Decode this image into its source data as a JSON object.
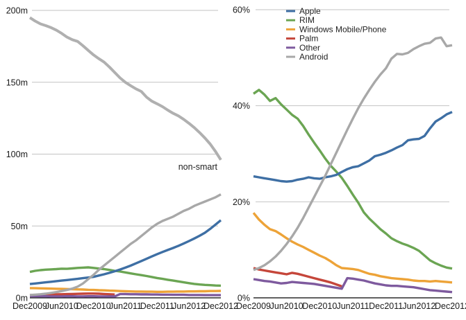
{
  "figure": {
    "background": "#ffffff",
    "text_color": "#1a1a1a",
    "gridline_color": "#c2c2c2",
    "axis_color": "#000000"
  },
  "chart_data": [
    {
      "type": "line",
      "id": "installed-base-chart",
      "title": "",
      "unit": "millions of units",
      "ylim": [
        0,
        200
      ],
      "grid": true,
      "months_span": 36,
      "y_ticks": [
        {
          "value": 0,
          "label": "0m"
        },
        {
          "value": 50,
          "label": "50m"
        },
        {
          "value": 100,
          "label": "100m"
        },
        {
          "value": 150,
          "label": "150m"
        },
        {
          "value": 200,
          "label": "200m"
        }
      ],
      "x_ticks": [
        {
          "month": 0,
          "label": "Dec2009"
        },
        {
          "month": 6,
          "label": "Jun2010"
        },
        {
          "month": 12,
          "label": "Dec2010"
        },
        {
          "month": 18,
          "label": "Jun2011"
        },
        {
          "month": 24,
          "label": "Dec2011"
        },
        {
          "month": 30,
          "label": "Jun2012"
        },
        {
          "month": 36,
          "label": "Dec2012"
        }
      ],
      "annotation": {
        "text": "non-smart"
      },
      "legend": null,
      "series": [
        {
          "name": "non-smart",
          "color": "#b0b0b0",
          "width": 4,
          "start_month": 0,
          "values": [
            195,
            192.6,
            190.6,
            189.4,
            188,
            186.2,
            184,
            181.4,
            179.6,
            178.4,
            175.4,
            172.2,
            169,
            166.4,
            164,
            160.6,
            156.8,
            153,
            150,
            147.6,
            145.4,
            143.6,
            139.6,
            136.8,
            135,
            133,
            130.6,
            128.4,
            126.6,
            124.2,
            121.4,
            118.4,
            115,
            111.2,
            107,
            101.8,
            96
          ]
        },
        {
          "name": "Windows Mobile/Phone",
          "color": "#eda338",
          "width": 3.4,
          "start_month": 0,
          "values": [
            6.8,
            6.7,
            6.6,
            6.5,
            6.4,
            6.3,
            6.2,
            6.1,
            6,
            5.9,
            5.8,
            5.6,
            5.5,
            5.3,
            5.2,
            5,
            4.9,
            4.7,
            4.6,
            4.5,
            4.4,
            4.4,
            4.3,
            4.3,
            4.2,
            4.2,
            4.3,
            4.3,
            4.4,
            4.4,
            4.5,
            4.5,
            4.6,
            4.6,
            4.7,
            4.7,
            4.8
          ]
        },
        {
          "name": "Palm",
          "color": "#c5463a",
          "width": 3.4,
          "start_month": 0,
          "values": [
            1.9,
            2,
            2.1,
            2.2,
            2.3,
            2.4,
            2.5,
            2.6,
            2.7,
            2.8,
            2.9,
            3,
            3,
            2.9,
            2.7,
            2.5,
            2.3
          ]
        },
        {
          "name": "Other",
          "color": "#7e5a9e",
          "width": 3.4,
          "start_month": 0,
          "values": [
            1.2,
            1.2,
            1.1,
            1.1,
            1,
            1,
            1,
            1.1,
            1.1,
            1,
            1,
            1.1,
            1.1,
            1,
            1,
            1,
            1,
            2.6,
            2.6,
            2.5,
            2.5,
            2.4,
            2.4,
            2.3,
            2.3,
            2.2,
            2.2,
            2.1,
            2.1,
            2.1,
            2,
            2,
            2,
            1.9,
            1.9,
            1.9,
            1.9
          ]
        },
        {
          "name": "RIM",
          "color": "#6ba553",
          "width": 3.4,
          "start_month": 0,
          "values": [
            18,
            18.8,
            19.3,
            19.6,
            19.8,
            20,
            20.3,
            20.2,
            20.5,
            20.8,
            21,
            21.2,
            20.8,
            20.4,
            20,
            19.4,
            18.8,
            18.3,
            17.7,
            17,
            16.4,
            15.8,
            15.2,
            14.5,
            13.8,
            13.2,
            12.6,
            12,
            11.4,
            10.8,
            10.2,
            9.7,
            9.3,
            9,
            8.8,
            8.6,
            8.5
          ]
        },
        {
          "name": "Apple",
          "color": "#3e6fa4",
          "width": 3.4,
          "start_month": 0,
          "values": [
            9.6,
            10,
            10.4,
            10.8,
            11.2,
            11.6,
            12,
            12.4,
            12.8,
            13.2,
            13.7,
            14.1,
            14.6,
            15.5,
            16.4,
            17.4,
            18.5,
            19.7,
            21,
            22.4,
            24,
            25.6,
            27.2,
            28.8,
            30.4,
            31.9,
            33.3,
            34.7,
            36.2,
            37.8,
            39.5,
            41.3,
            43.2,
            45.3,
            48,
            51,
            54
          ]
        },
        {
          "name": "Android",
          "color": "#a8a8a8",
          "width": 3.4,
          "start_month": 0,
          "values": [
            2,
            2.2,
            2.5,
            2.9,
            3.4,
            4,
            4.7,
            5.5,
            6.4,
            7.8,
            10,
            13,
            16,
            19.5,
            22.5,
            25.5,
            28.5,
            31.5,
            34.5,
            37.5,
            40,
            43,
            46,
            49,
            51.5,
            53.5,
            55,
            56.5,
            58.5,
            60.5,
            62,
            64,
            65.5,
            67,
            68.5,
            70,
            72
          ]
        }
      ]
    },
    {
      "type": "line",
      "id": "share-chart",
      "title": "",
      "unit": "percent share",
      "ylim": [
        0,
        60
      ],
      "grid": true,
      "months_span": 36,
      "y_ticks": [
        {
          "value": 0,
          "label": "0%"
        },
        {
          "value": 20,
          "label": "20%"
        },
        {
          "value": 40,
          "label": "40%"
        },
        {
          "value": 60,
          "label": "60%"
        }
      ],
      "x_ticks": [
        {
          "month": 0,
          "label": "Dec2009"
        },
        {
          "month": 6,
          "label": "Jun2010"
        },
        {
          "month": 12,
          "label": "Dec2010"
        },
        {
          "month": 18,
          "label": "Jun2011"
        },
        {
          "month": 24,
          "label": "Dec2011"
        },
        {
          "month": 30,
          "label": "Jun2012"
        },
        {
          "month": 36,
          "label": "Dec2012"
        }
      ],
      "annotation": null,
      "legend": {
        "position": "top-inside",
        "entries": [
          {
            "label": "Apple",
            "color": "#3e6fa4"
          },
          {
            "label": "RIM",
            "color": "#6ba553"
          },
          {
            "label": "Windows Mobile/Phone",
            "color": "#eda338"
          },
          {
            "label": "Palm",
            "color": "#c5463a"
          },
          {
            "label": "Other",
            "color": "#7e5a9e"
          },
          {
            "label": "Android",
            "color": "#a8a8a8"
          }
        ]
      },
      "series": [
        {
          "name": "Windows Mobile/Phone",
          "color": "#eda338",
          "width": 3.4,
          "start_month": 0,
          "values": [
            17.7,
            16.3,
            15.2,
            14.3,
            13.9,
            13.2,
            12.4,
            11.7,
            11.1,
            10.6,
            10,
            9.4,
            8.8,
            8.3,
            7.6,
            6.8,
            6.2,
            6.1,
            6,
            5.8,
            5.4,
            5,
            4.8,
            4.5,
            4.3,
            4.1,
            4,
            3.9,
            3.8,
            3.6,
            3.5,
            3.5,
            3.4,
            3.5,
            3.4,
            3.3,
            3.2
          ]
        },
        {
          "name": "Palm",
          "color": "#c5463a",
          "width": 3.4,
          "start_month": 0,
          "values": [
            6.2,
            5.9,
            5.7,
            5.5,
            5.3,
            5.1,
            4.9,
            5.2,
            5,
            4.7,
            4.4,
            4.1,
            3.8,
            3.5,
            3.2,
            2.8,
            2.4
          ]
        },
        {
          "name": "Other",
          "color": "#7e5a9e",
          "width": 3.4,
          "start_month": 0,
          "values": [
            3.9,
            3.7,
            3.5,
            3.4,
            3.2,
            3,
            3.1,
            3.3,
            3.2,
            3.1,
            3,
            2.9,
            2.7,
            2.5,
            2.3,
            2.1,
            1.9,
            4.1,
            4,
            3.8,
            3.6,
            3.3,
            3,
            2.8,
            2.6,
            2.5,
            2.5,
            2.4,
            2.3,
            2.2,
            2,
            1.8,
            1.6,
            1.5,
            1.4,
            1.3,
            1.2
          ]
        },
        {
          "name": "RIM",
          "color": "#6ba553",
          "width": 3.4,
          "start_month": 0,
          "values": [
            42.5,
            43.3,
            42.3,
            41,
            41.6,
            40.3,
            39.2,
            38.1,
            37.3,
            35.8,
            34,
            32.3,
            30.7,
            29,
            27.5,
            26.3,
            25,
            23.3,
            21.5,
            19.8,
            17.8,
            16.5,
            15.4,
            14.3,
            13.4,
            12.4,
            11.8,
            11.3,
            10.9,
            10.4,
            9.8,
            8.8,
            7.8,
            7.2,
            6.7,
            6.3,
            6.1
          ]
        },
        {
          "name": "Apple",
          "color": "#3e6fa4",
          "width": 3.4,
          "start_month": 0,
          "values": [
            25.3,
            25.1,
            24.9,
            24.7,
            24.5,
            24.3,
            24.2,
            24.3,
            24.6,
            24.8,
            25.1,
            24.9,
            24.8,
            25.1,
            25.3,
            25.6,
            26.2,
            26.8,
            27.2,
            27.4,
            28,
            28.6,
            29.5,
            29.8,
            30.2,
            30.7,
            31.3,
            31.8,
            32.8,
            33,
            33.1,
            33.7,
            35.3,
            36.7,
            37.4,
            38.2,
            38.7
          ]
        },
        {
          "name": "Android",
          "color": "#a8a8a8",
          "width": 3.4,
          "start_month": 0,
          "values": [
            5.8,
            6.2,
            6.8,
            7.6,
            8.6,
            9.8,
            11.2,
            12.8,
            14.6,
            16.6,
            18.8,
            21,
            23.2,
            25.4,
            27.8,
            30.2,
            32.6,
            35,
            37.3,
            39.5,
            41.5,
            43.3,
            45,
            46.5,
            47.8,
            49.8,
            50.8,
            50.7,
            51,
            51.8,
            52.4,
            52.9,
            53.1,
            54,
            54.2,
            52.4,
            52.6
          ]
        }
      ]
    }
  ]
}
